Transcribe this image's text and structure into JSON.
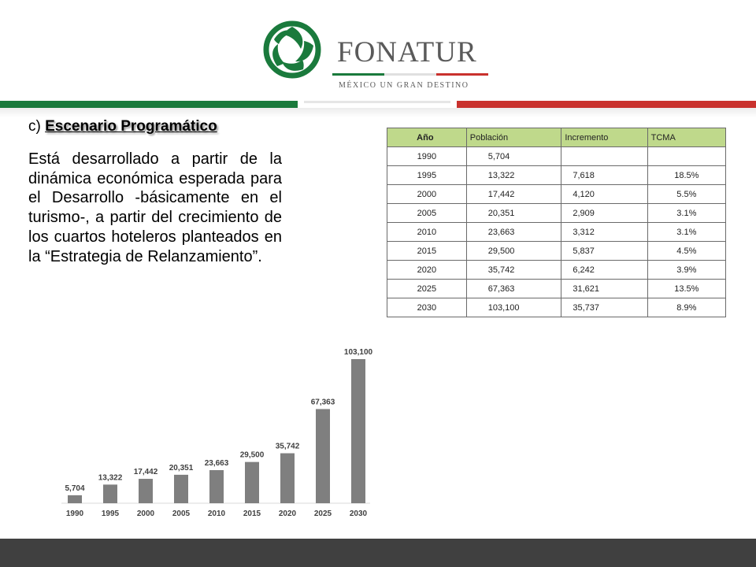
{
  "header": {
    "brand_name": "FONATUR",
    "tagline": "MÉXICO UN GRAN DESTINO",
    "colors": {
      "green": "#1a7a3c",
      "red": "#c9312d",
      "gray": "#5a5a5a"
    }
  },
  "section": {
    "prefix": "c) ",
    "title": "Escenario Programático",
    "paragraph": "Está desarrollado a partir de la dinámica económica esperada para el Desarrollo -básicamente en el turismo-, a partir del crecimiento de los cuartos hoteleros planteados en la “Estrategia de Relanzamiento”."
  },
  "table": {
    "headers": {
      "year": "Año",
      "population": "Población",
      "increment": "Incremento",
      "tcma": "TCMA"
    },
    "rows": [
      {
        "year": "1990",
        "population": "5,704",
        "increment": "",
        "tcma": ""
      },
      {
        "year": "1995",
        "population": "13,322",
        "increment": "7,618",
        "tcma": "18.5%"
      },
      {
        "year": "2000",
        "population": "17,442",
        "increment": "4,120",
        "tcma": "5.5%"
      },
      {
        "year": "2005",
        "population": "20,351",
        "increment": "2,909",
        "tcma": "3.1%"
      },
      {
        "year": "2010",
        "population": "23,663",
        "increment": "3,312",
        "tcma": "3.1%"
      },
      {
        "year": "2015",
        "population": "29,500",
        "increment": "5,837",
        "tcma": "4.5%"
      },
      {
        "year": "2020",
        "population": "35,742",
        "increment": "6,242",
        "tcma": "3.9%"
      },
      {
        "year": "2025",
        "population": "67,363",
        "increment": "31,621",
        "tcma": "13.5%"
      },
      {
        "year": "2030",
        "population": "103,100",
        "increment": "35,737",
        "tcma": "8.9%"
      }
    ]
  },
  "chart_data": {
    "type": "bar",
    "categories": [
      "1990",
      "1995",
      "2000",
      "2005",
      "2010",
      "2015",
      "2020",
      "2025",
      "2030"
    ],
    "values": [
      5704,
      13322,
      17442,
      20351,
      23663,
      29500,
      35742,
      67363,
      103100
    ],
    "value_labels": [
      "5,704",
      "13,322",
      "17,442",
      "20,351",
      "23,663",
      "29,500",
      "35,742",
      "67,363",
      "103,100"
    ],
    "title": "",
    "xlabel": "",
    "ylabel": "",
    "ylim": [
      0,
      103100
    ],
    "grid": false,
    "bar_color": "#7f7f7f"
  }
}
